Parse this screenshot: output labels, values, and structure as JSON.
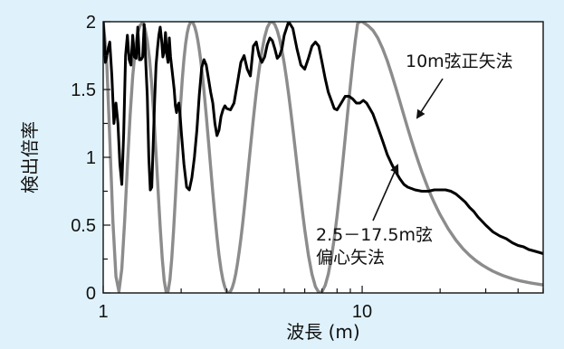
{
  "chart_data": {
    "type": "line",
    "title": "",
    "xlabel": "波長 (m)",
    "ylabel": "検出倍率",
    "x_scale": "log",
    "xlim": [
      1,
      50
    ],
    "ylim": [
      0,
      2
    ],
    "x_tick_labels": [
      "1",
      "10"
    ],
    "y_tick_labels": [
      "0",
      "0.5",
      "1",
      "1.5",
      "2"
    ],
    "grid": false,
    "legend": "none",
    "series": [
      {
        "name": "10m弦正矢法",
        "color": "#8c8c8c",
        "x": [
          1,
          1.03,
          1.06,
          1.09,
          1.12,
          1.15,
          1.18,
          1.21,
          1.24,
          1.27,
          1.3,
          1.33,
          1.36,
          1.39,
          1.42,
          1.45,
          1.48,
          1.51,
          1.54,
          1.57,
          1.6,
          1.63,
          1.66,
          1.69,
          1.72,
          1.75,
          1.78,
          1.81,
          1.84,
          1.87,
          1.9,
          1.93,
          1.96,
          1.99,
          2.02,
          2.05,
          2.08,
          2.11,
          2.14,
          2.17,
          2.2,
          2.23,
          2.26,
          2.29,
          2.32,
          2.35,
          2.38,
          2.41,
          2.44,
          2.47,
          2.5,
          2.55,
          2.6,
          2.65,
          2.7,
          2.75,
          2.8,
          2.85,
          2.9,
          2.95,
          3.0,
          3.05,
          3.1,
          3.15,
          3.2,
          3.25,
          3.3,
          3.35,
          3.4,
          3.45,
          3.5,
          3.55,
          3.6,
          3.65,
          3.7,
          3.75,
          3.8,
          3.85,
          3.9,
          3.95,
          4.0,
          4.1,
          4.2,
          4.3,
          4.4,
          4.5,
          4.6,
          4.7,
          4.8,
          4.9,
          5.0,
          5.1,
          5.2,
          5.3,
          5.4,
          5.5,
          5.6,
          5.7,
          5.8,
          5.9,
          6.0,
          6.2,
          6.4,
          6.6,
          6.8,
          7.0,
          7.2,
          7.4,
          7.6,
          7.8,
          8.0,
          8.2,
          8.4,
          8.6,
          8.8,
          9.0,
          9.2,
          9.4,
          9.6,
          9.8,
          10.0,
          10.5,
          11.0,
          11.5,
          12.0,
          12.5,
          13.0,
          13.5,
          14.0,
          14.5,
          15.0,
          15.5,
          16.0,
          16.5,
          17.0,
          17.5,
          18.0,
          18.5,
          19.0,
          19.5,
          20.0,
          21.5,
          23.0,
          24.5,
          26.0,
          27.5,
          29.0,
          30.5,
          32.0,
          33.5,
          35.0,
          36.5,
          38.0,
          39.5,
          41.0,
          42.5,
          44.0,
          45.5,
          47.0,
          48.5,
          50.0
        ],
        "y": [
          2.0,
          1.743,
          1.141,
          0.529,
          0.121,
          0.011,
          0.178,
          0.529,
          0.936,
          1.306,
          1.597,
          1.795,
          1.922,
          1.975,
          1.994,
          1.949,
          1.859,
          1.724,
          1.532,
          1.294,
          1.027,
          0.748,
          0.484,
          0.257,
          0.092,
          0.007,
          0.012,
          0.098,
          0.256,
          0.463,
          0.7,
          0.944,
          1.18,
          1.392,
          1.576,
          1.723,
          1.835,
          1.916,
          1.967,
          1.993,
          2.0,
          1.986,
          1.958,
          1.917,
          1.862,
          1.793,
          1.714,
          1.625,
          1.525,
          1.418,
          1.309,
          1.118,
          0.926,
          0.74,
          0.568,
          0.412,
          0.279,
          0.174,
          0.095,
          0.042,
          0.01,
          0.0,
          0.011,
          0.039,
          0.083,
          0.142,
          0.217,
          0.303,
          0.397,
          0.499,
          0.609,
          0.722,
          0.838,
          0.954,
          1.066,
          1.175,
          1.283,
          1.384,
          1.48,
          1.567,
          1.646,
          1.783,
          1.886,
          1.957,
          1.993,
          2.0,
          1.979,
          1.935,
          1.871,
          1.79,
          1.693,
          1.584,
          1.466,
          1.34,
          1.21,
          1.079,
          0.948,
          0.82,
          0.697,
          0.578,
          0.468,
          0.279,
          0.138,
          0.046,
          0.004,
          0.01,
          0.056,
          0.139,
          0.256,
          0.401,
          0.568,
          0.752,
          0.946,
          1.144,
          1.339,
          1.526,
          1.7,
          1.855,
          1.985,
          2.001,
          2.0,
          1.973,
          1.937,
          1.879,
          1.801,
          1.712,
          1.612,
          1.51,
          1.408,
          1.308,
          1.213,
          1.124,
          1.041,
          0.964,
          0.893,
          0.829,
          0.768,
          0.713,
          0.664,
          0.619,
          0.577,
          0.472,
          0.39,
          0.326,
          0.277,
          0.238,
          0.207,
          0.182,
          0.16,
          0.143,
          0.128,
          0.116,
          0.105,
          0.096,
          0.088,
          0.082,
          0.076,
          0.071,
          0.067,
          0.063,
          0.059
        ]
      },
      {
        "name": "2.5－17.5m弦偏心矢法",
        "color": "#000000",
        "x": [
          1,
          1.02,
          1.04,
          1.06,
          1.08,
          1.1,
          1.12,
          1.14,
          1.16,
          1.18,
          1.2,
          1.22,
          1.24,
          1.26,
          1.28,
          1.3,
          1.32,
          1.34,
          1.36,
          1.38,
          1.4,
          1.42,
          1.44,
          1.46,
          1.48,
          1.5,
          1.52,
          1.54,
          1.56,
          1.58,
          1.6,
          1.62,
          1.64,
          1.66,
          1.68,
          1.7,
          1.72,
          1.74,
          1.76,
          1.78,
          1.8,
          1.82,
          1.84,
          1.86,
          1.88,
          1.9,
          1.92,
          1.94,
          1.96,
          1.98,
          2.0,
          2.05,
          2.1,
          2.15,
          2.2,
          2.25,
          2.3,
          2.35,
          2.4,
          2.45,
          2.5,
          2.55,
          2.6,
          2.65,
          2.7,
          2.75,
          2.8,
          2.85,
          2.9,
          2.95,
          3.0,
          3.1,
          3.2,
          3.3,
          3.4,
          3.5,
          3.6,
          3.7,
          3.8,
          3.9,
          4.0,
          4.1,
          4.2,
          4.3,
          4.4,
          4.5,
          4.6,
          4.7,
          4.8,
          4.9,
          5.0,
          5.2,
          5.4,
          5.6,
          5.8,
          6.0,
          6.2,
          6.4,
          6.6,
          6.8,
          7.0,
          7.2,
          7.4,
          7.6,
          7.8,
          8.0,
          8.3,
          8.6,
          8.9,
          9.2,
          9.5,
          9.8,
          10.1,
          10.4,
          10.7,
          11.0,
          11.5,
          12.0,
          12.5,
          13.0,
          13.5,
          14.0,
          14.5,
          15.0,
          15.5,
          16.0,
          17.0,
          18.0,
          19.0,
          20.0,
          21.0,
          22.0,
          23.0,
          24.0,
          25.0,
          26.0,
          27.0,
          28.0,
          29.0,
          30.0,
          32.0,
          34.0,
          36.0,
          38.0,
          40.0,
          42.0,
          44.0,
          46.0,
          48.0,
          50.0
        ],
        "y": [
          2.0,
          1.7,
          1.78,
          1.85,
          1.6,
          1.25,
          1.4,
          1.25,
          0.95,
          0.8,
          1.18,
          1.75,
          1.9,
          1.72,
          1.68,
          1.9,
          1.74,
          1.73,
          1.96,
          1.72,
          1.72,
          1.74,
          1.98,
          1.7,
          1.45,
          1.0,
          0.76,
          0.78,
          1.1,
          1.42,
          1.68,
          1.8,
          1.9,
          1.96,
          1.87,
          1.74,
          1.78,
          1.92,
          1.76,
          1.7,
          1.88,
          1.74,
          1.66,
          1.58,
          1.5,
          1.38,
          1.33,
          1.38,
          1.4,
          1.32,
          1.2,
          0.95,
          0.78,
          0.76,
          0.85,
          1.0,
          1.2,
          1.46,
          1.66,
          1.72,
          1.68,
          1.58,
          1.48,
          1.4,
          1.25,
          1.16,
          1.2,
          1.3,
          1.35,
          1.38,
          1.36,
          1.35,
          1.4,
          1.55,
          1.7,
          1.75,
          1.65,
          1.6,
          1.82,
          1.85,
          1.75,
          1.7,
          1.74,
          1.83,
          1.88,
          1.86,
          1.8,
          1.73,
          1.75,
          1.8,
          1.9,
          2.0,
          1.95,
          1.8,
          1.68,
          1.65,
          1.73,
          1.82,
          1.85,
          1.82,
          1.7,
          1.58,
          1.48,
          1.42,
          1.36,
          1.35,
          1.4,
          1.45,
          1.45,
          1.43,
          1.4,
          1.4,
          1.42,
          1.4,
          1.36,
          1.32,
          1.22,
          1.12,
          1.02,
          0.95,
          0.89,
          0.84,
          0.8,
          0.78,
          0.77,
          0.76,
          0.75,
          0.75,
          0.76,
          0.76,
          0.76,
          0.75,
          0.73,
          0.7,
          0.67,
          0.63,
          0.6,
          0.56,
          0.53,
          0.5,
          0.45,
          0.42,
          0.4,
          0.37,
          0.35,
          0.34,
          0.32,
          0.31,
          0.3,
          0.29
        ]
      }
    ],
    "annotations": [
      {
        "text": "10m弦正矢法",
        "target_series": 0
      },
      {
        "text_lines": [
          "2.5－17.5m弦",
          "偏心矢法"
        ],
        "target_series": 1
      }
    ]
  }
}
